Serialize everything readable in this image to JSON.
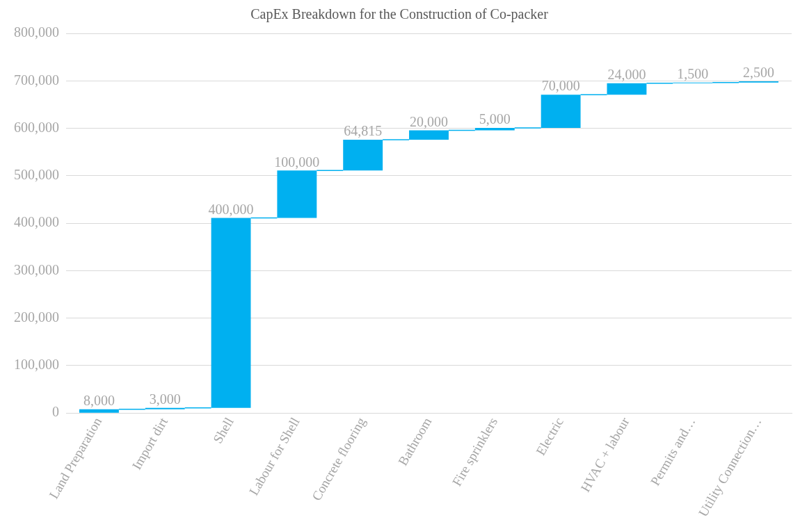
{
  "chart_data": {
    "type": "bar",
    "title": "CapEx Breakdown for the Construction of Co-packer",
    "categories": [
      "Land Preparation",
      "Import dirt",
      "Shell",
      "Labour for Shell",
      "Concrete flooring",
      "Bathroom",
      "Fire sprinklers",
      "Electric",
      "HVAC + labour",
      "Permits and…",
      "Utility Connection…"
    ],
    "values": [
      8000,
      3000,
      400000,
      100000,
      64815,
      20000,
      5000,
      70000,
      24000,
      1500,
      2500
    ],
    "base": [
      0,
      8000,
      11000,
      411000,
      511000,
      575815,
      595815,
      600815,
      670815,
      694815,
      696315
    ],
    "color": "#00b0f0",
    "value_labels": [
      "8,000",
      "3,000",
      "400,000",
      "100,000",
      "64,815",
      "20,000",
      "5,000",
      "70,000",
      "24,000",
      "1,500",
      "2,500"
    ],
    "ylim": [
      0,
      800000
    ],
    "yticks": [
      0,
      {
        "value": 100000,
        "label": "100,000"
      },
      {
        "value": 200000,
        "label": "200,000"
      },
      {
        "value": 300000,
        "label": "300,000"
      },
      {
        "value": 400000,
        "label": "400,000"
      },
      {
        "value": 500000,
        "label": "500,000"
      },
      {
        "value": 600000,
        "label": "600,000"
      },
      {
        "value": 700000,
        "label": "700,000"
      },
      {
        "value": 800000,
        "label": "800,000"
      }
    ],
    "grid": "y",
    "legend": false
  }
}
